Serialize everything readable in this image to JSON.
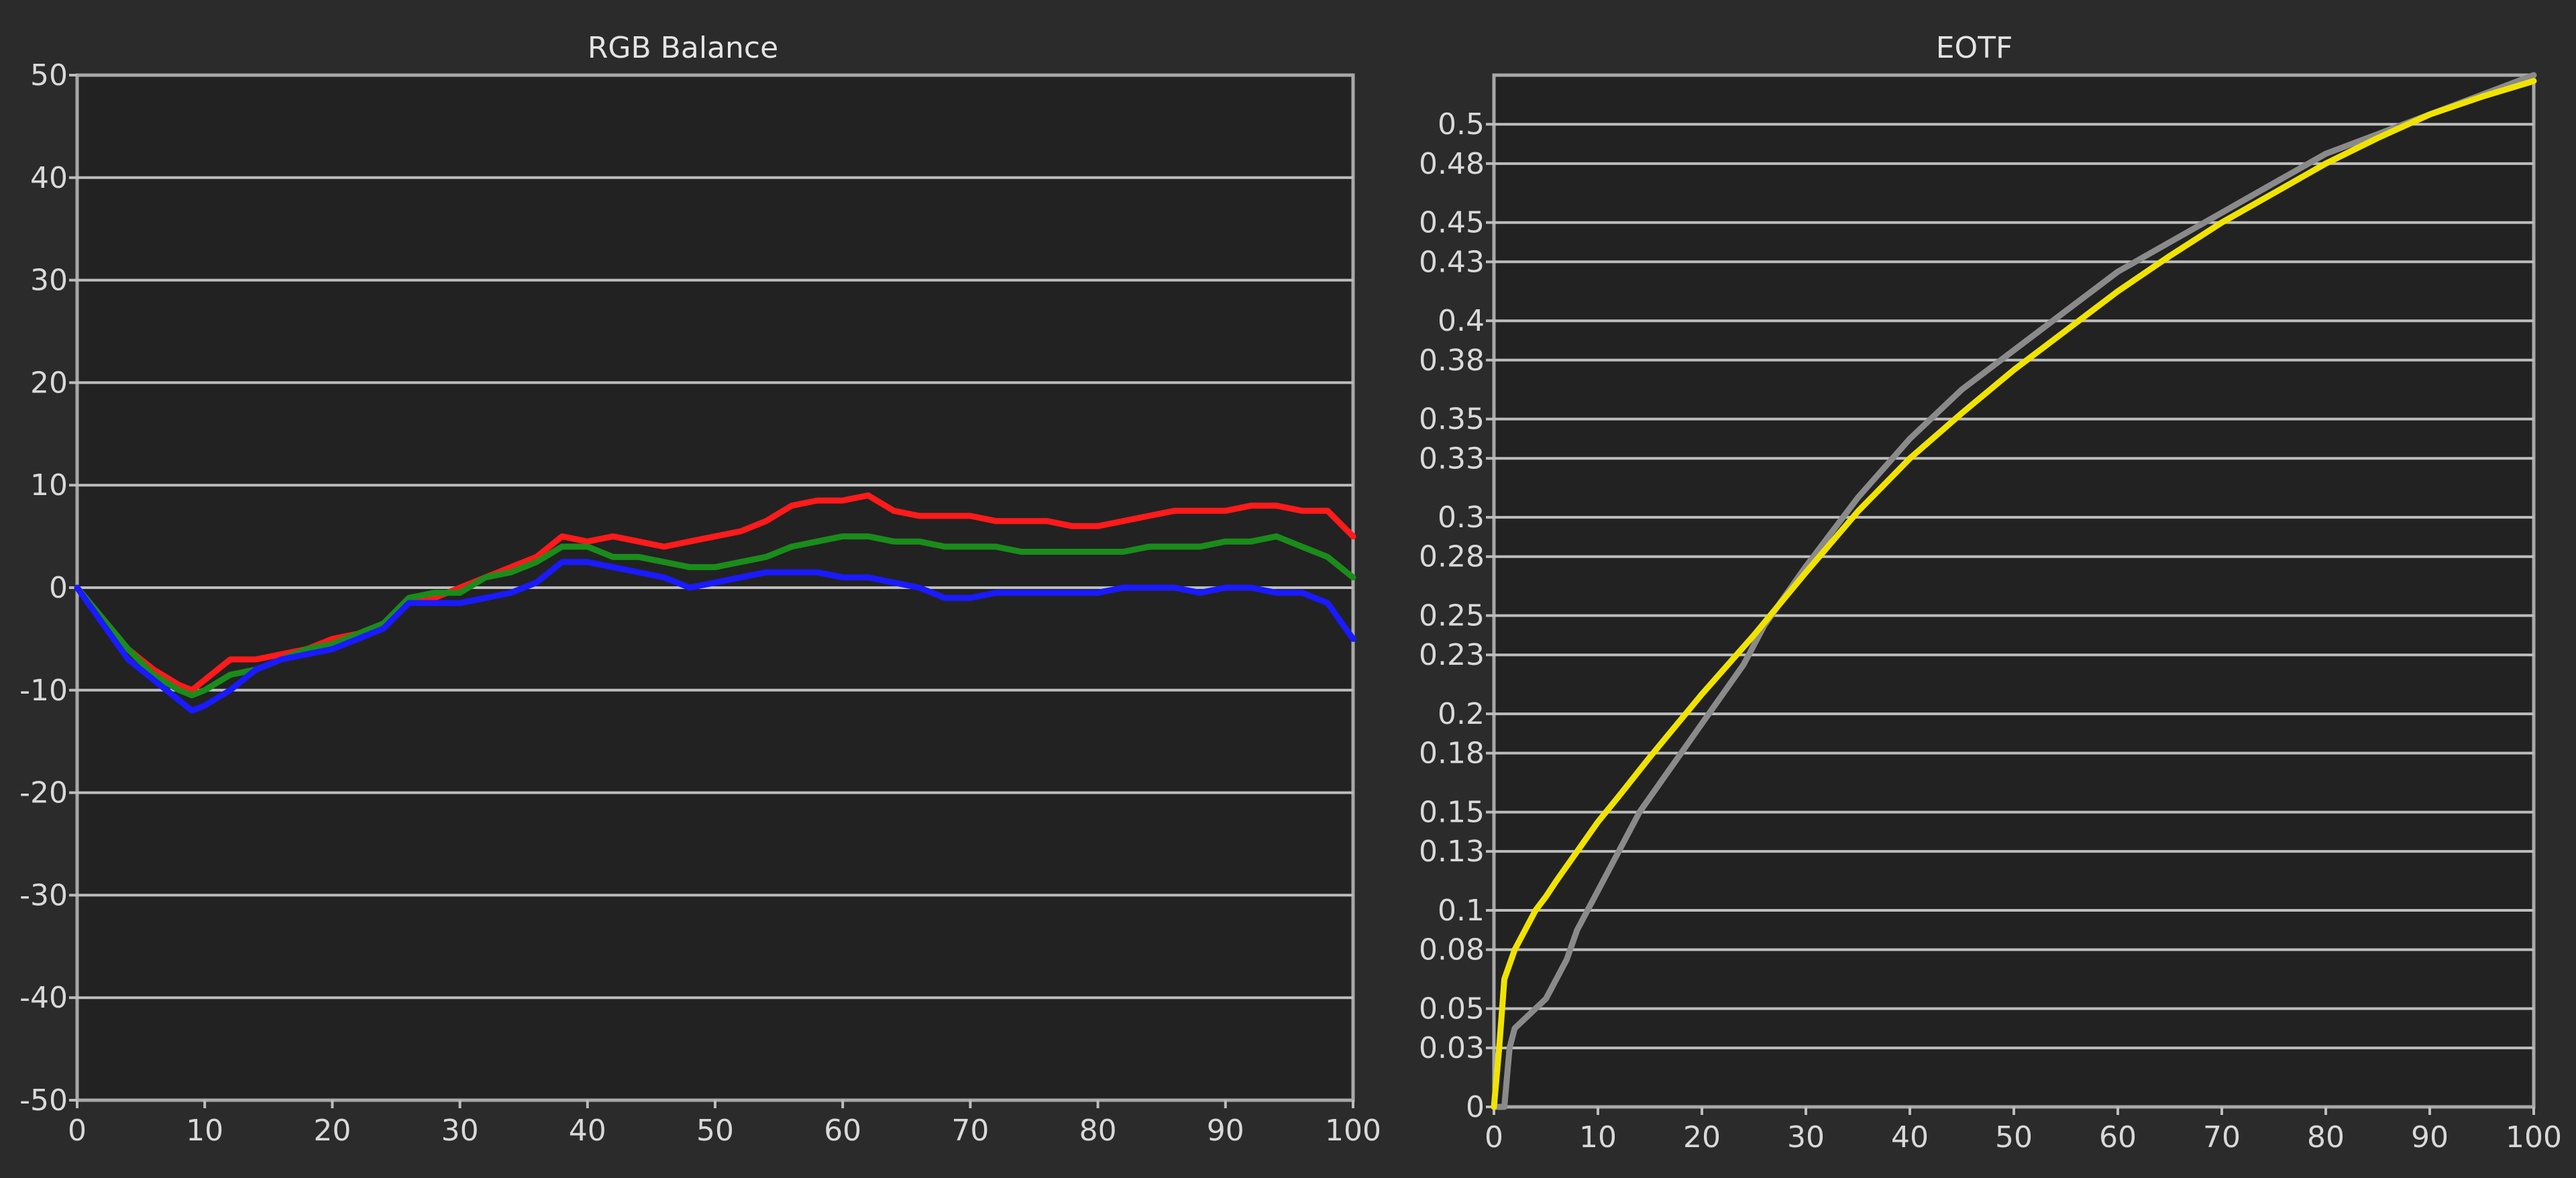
{
  "chart_data": [
    {
      "type": "line",
      "title": "RGB Balance",
      "xlabel": "",
      "ylabel": "",
      "xlim": [
        0,
        100
      ],
      "ylim": [
        -50,
        50
      ],
      "x_ticks": [
        "0",
        "10",
        "20",
        "30",
        "40",
        "50",
        "60",
        "70",
        "80",
        "90",
        "100"
      ],
      "y_ticks": [
        "50",
        "40",
        "30",
        "20",
        "10",
        "0",
        "-10",
        "-20",
        "-30",
        "-40",
        "-50"
      ],
      "grid": true,
      "series": [
        {
          "color": "#ff1a1a",
          "x": [
            0,
            2,
            4,
            6,
            8,
            9,
            10,
            12,
            14,
            16,
            18,
            20,
            22,
            24,
            26,
            28,
            30,
            32,
            34,
            36,
            38,
            40,
            42,
            44,
            46,
            48,
            50,
            52,
            54,
            56,
            58,
            60,
            62,
            64,
            66,
            68,
            70,
            72,
            74,
            76,
            78,
            80,
            82,
            84,
            86,
            88,
            90,
            92,
            94,
            96,
            98,
            100
          ],
          "values": [
            0,
            -3,
            -6,
            -8,
            -9.5,
            -10,
            -9,
            -7,
            -7,
            -6.5,
            -6,
            -5,
            -4.5,
            -3.5,
            -1.5,
            -1,
            0,
            1,
            2,
            3,
            5,
            4.5,
            5,
            4.5,
            4,
            4.5,
            5,
            5.5,
            6.5,
            8,
            8.5,
            8.5,
            9,
            7.5,
            7,
            7,
            7,
            6.5,
            6.5,
            6.5,
            6,
            6,
            6.5,
            7,
            7.5,
            7.5,
            7.5,
            8,
            8,
            7.5,
            7.5,
            5
          ]
        },
        {
          "color": "#1a8c1a",
          "x": [
            0,
            2,
            4,
            6,
            8,
            9,
            10,
            12,
            14,
            16,
            18,
            20,
            22,
            24,
            26,
            28,
            30,
            32,
            34,
            36,
            38,
            40,
            42,
            44,
            46,
            48,
            50,
            52,
            54,
            56,
            58,
            60,
            62,
            64,
            66,
            68,
            70,
            72,
            74,
            76,
            78,
            80,
            82,
            84,
            86,
            88,
            90,
            92,
            94,
            96,
            98,
            100
          ],
          "values": [
            0,
            -3,
            -6,
            -8.5,
            -10,
            -10.5,
            -10,
            -8.5,
            -8,
            -7,
            -6,
            -5.5,
            -4.5,
            -3.5,
            -1,
            -0.5,
            -0.5,
            1,
            1.5,
            2.5,
            4,
            4,
            3,
            3,
            2.5,
            2,
            2,
            2.5,
            3,
            4,
            4.5,
            5,
            5,
            4.5,
            4.5,
            4,
            4,
            4,
            3.5,
            3.5,
            3.5,
            3.5,
            3.5,
            4,
            4,
            4,
            4.5,
            4.5,
            5,
            4,
            3,
            1
          ]
        },
        {
          "color": "#1a1aff",
          "x": [
            0,
            2,
            4,
            6,
            8,
            9,
            10,
            12,
            14,
            16,
            18,
            20,
            22,
            24,
            26,
            28,
            30,
            32,
            34,
            36,
            38,
            40,
            42,
            44,
            46,
            48,
            50,
            52,
            54,
            56,
            58,
            60,
            62,
            64,
            66,
            68,
            70,
            72,
            74,
            76,
            78,
            80,
            82,
            84,
            86,
            88,
            90,
            92,
            94,
            96,
            98,
            100
          ],
          "values": [
            0,
            -3.5,
            -7,
            -9,
            -11,
            -12,
            -11.5,
            -10,
            -8,
            -7,
            -6.5,
            -6,
            -5,
            -4,
            -1.5,
            -1.5,
            -1.5,
            -1,
            -0.5,
            0.5,
            2.5,
            2.5,
            2,
            1.5,
            1,
            0,
            0.5,
            1,
            1.5,
            1.5,
            1.5,
            1,
            1,
            0.5,
            0,
            -1,
            -1,
            -0.5,
            -0.5,
            -0.5,
            -0.5,
            -0.5,
            0,
            0,
            0,
            -0.5,
            0,
            0,
            -0.5,
            -0.5,
            -1.5,
            -5
          ]
        }
      ]
    },
    {
      "type": "line",
      "title": "EOTF",
      "xlabel": "",
      "ylabel": "",
      "xlim": [
        0,
        100
      ],
      "ylim": [
        0,
        0.525
      ],
      "x_ticks": [
        "0",
        "10",
        "20",
        "30",
        "40",
        "50",
        "60",
        "70",
        "80",
        "90",
        "100"
      ],
      "y_ticks": [
        "0.5",
        "0.48",
        "0.45",
        "0.43",
        "0.4",
        "0.38",
        "0.35",
        "0.33",
        "0.3",
        "0.28",
        "0.25",
        "0.23",
        "0.2",
        "0.18",
        "0.15",
        "0.13",
        "0.1",
        "0.08",
        "0.05",
        "0.03",
        "0"
      ],
      "grid": true,
      "series": [
        {
          "color": "#8a8a8a",
          "x": [
            0,
            1,
            1.5,
            2,
            3,
            4,
            5,
            6,
            7,
            8,
            10,
            12,
            14,
            16,
            18,
            20,
            22,
            24,
            26,
            28,
            30,
            35,
            40,
            45,
            50,
            55,
            60,
            65,
            70,
            75,
            80,
            85,
            90,
            95,
            100
          ],
          "values": [
            0,
            0,
            0.03,
            0.04,
            0.045,
            0.05,
            0.055,
            0.065,
            0.075,
            0.09,
            0.11,
            0.13,
            0.15,
            0.165,
            0.18,
            0.195,
            0.21,
            0.225,
            0.245,
            0.26,
            0.275,
            0.31,
            0.34,
            0.365,
            0.385,
            0.405,
            0.425,
            0.44,
            0.455,
            0.47,
            0.485,
            0.495,
            0.505,
            0.515,
            0.525
          ]
        },
        {
          "color": "#f0e300",
          "x": [
            0,
            0.5,
            1,
            2,
            3,
            4,
            5,
            6,
            8,
            10,
            12,
            15,
            20,
            25,
            30,
            35,
            40,
            45,
            50,
            55,
            60,
            65,
            70,
            75,
            80,
            85,
            90,
            95,
            100
          ],
          "values": [
            0,
            0.03,
            0.065,
            0.08,
            0.09,
            0.1,
            0.107,
            0.115,
            0.13,
            0.145,
            0.158,
            0.178,
            0.21,
            0.24,
            0.272,
            0.303,
            0.33,
            0.353,
            0.375,
            0.395,
            0.415,
            0.433,
            0.45,
            0.465,
            0.48,
            0.493,
            0.505,
            0.514,
            0.522
          ]
        }
      ]
    }
  ]
}
